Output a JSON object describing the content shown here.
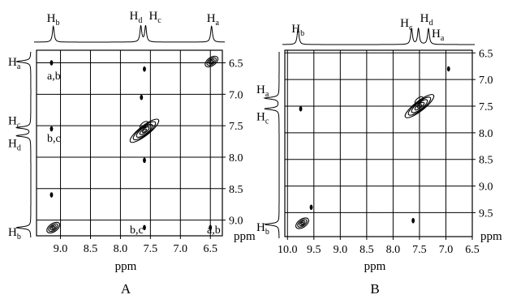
{
  "axis_unit": "ppm",
  "panels": [
    {
      "id": "A",
      "label": "A",
      "top_peak_labels": [
        {
          "letter": "b",
          "ppm": 9.12
        },
        {
          "letter": "d",
          "ppm": 7.66
        },
        {
          "letter": "c",
          "ppm": 7.58
        },
        {
          "letter": "a",
          "ppm": 6.48
        }
      ],
      "left_peak_labels": [
        {
          "letter": "a",
          "ppm": 6.48
        },
        {
          "letter": "c",
          "ppm": 7.53
        },
        {
          "letter": "d",
          "ppm": 7.66
        },
        {
          "letter": "b",
          "ppm": 9.12
        }
      ],
      "x_ticks": [
        "9.0",
        "8.5",
        "8.0",
        "7.5",
        "7.0",
        "6.5"
      ],
      "y_ticks": [
        "6.5",
        "7.0",
        "7.5",
        "8.0",
        "8.5",
        "9.0"
      ],
      "annotations": [
        "a,b",
        "b,c",
        "b,c",
        "a,b"
      ],
      "xlabel": "ppm",
      "ylabel": "ppm"
    },
    {
      "id": "B",
      "label": "B",
      "top_peak_labels": [
        {
          "letter": "b",
          "ppm": 9.8
        },
        {
          "letter": "c",
          "ppm": 7.65
        },
        {
          "letter": "d",
          "ppm": 7.52
        },
        {
          "letter": "a",
          "ppm": 7.33
        }
      ],
      "left_peak_labels": [
        {
          "letter": "a",
          "ppm": 7.35
        },
        {
          "letter": "c",
          "ppm": 7.55
        },
        {
          "letter": "b",
          "ppm": 9.72
        }
      ],
      "x_ticks": [
        "10.0",
        "9.5",
        "9.0",
        "8.5",
        "8.0",
        "7.5",
        "7.0",
        "6.5"
      ],
      "y_ticks": [
        "6.5",
        "7.0",
        "7.5",
        "8.0",
        "8.5",
        "9.0",
        "9.5"
      ],
      "annotations": [],
      "xlabel": "ppm",
      "ylabel": "ppm"
    }
  ],
  "chart_data": [
    {
      "type": "heatmap",
      "panel": "A",
      "xlim": [
        9.4,
        6.3
      ],
      "ylim": [
        6.3,
        9.25
      ],
      "x_ticks": [
        9.0,
        8.5,
        8.0,
        7.5,
        7.0,
        6.5
      ],
      "y_ticks": [
        6.5,
        7.0,
        7.5,
        8.0,
        8.5,
        9.0
      ],
      "grid": true,
      "cross_peaks": [
        {
          "x": 9.12,
          "y": 9.12,
          "size": "medium",
          "label": ""
        },
        {
          "x": 6.48,
          "y": 6.48,
          "size": "medium",
          "label": ""
        },
        {
          "x": 7.6,
          "y": 7.58,
          "size": "large",
          "label": ""
        },
        {
          "x": 9.15,
          "y": 6.5,
          "size": "small",
          "label": "a,b"
        },
        {
          "x": 9.15,
          "y": 7.55,
          "size": "small",
          "label": "b,c"
        },
        {
          "x": 9.15,
          "y": 8.6,
          "size": "small",
          "label": ""
        },
        {
          "x": 7.6,
          "y": 9.12,
          "size": "small",
          "label": "b,c"
        },
        {
          "x": 6.5,
          "y": 9.12,
          "size": "small",
          "label": "a,b"
        },
        {
          "x": 7.6,
          "y": 6.6,
          "size": "small",
          "label": ""
        },
        {
          "x": 7.65,
          "y": 7.05,
          "size": "small",
          "label": ""
        },
        {
          "x": 7.6,
          "y": 8.05,
          "size": "small",
          "label": ""
        }
      ]
    },
    {
      "type": "heatmap",
      "panel": "B",
      "xlim": [
        10.05,
        6.5
      ],
      "ylim": [
        6.45,
        9.95
      ],
      "x_ticks": [
        10.0,
        9.5,
        9.0,
        8.5,
        8.0,
        7.5,
        7.0,
        6.5
      ],
      "y_ticks": [
        6.5,
        7.0,
        7.5,
        8.0,
        8.5,
        9.0,
        9.5
      ],
      "grid": true,
      "cross_peaks": [
        {
          "x": 9.72,
          "y": 9.7,
          "size": "medium",
          "label": ""
        },
        {
          "x": 7.5,
          "y": 7.5,
          "size": "large",
          "label": ""
        },
        {
          "x": 9.75,
          "y": 7.55,
          "size": "small",
          "label": ""
        },
        {
          "x": 9.55,
          "y": 9.4,
          "size": "small",
          "label": ""
        },
        {
          "x": 6.95,
          "y": 6.8,
          "size": "small",
          "label": ""
        },
        {
          "x": 7.62,
          "y": 9.65,
          "size": "small",
          "label": ""
        }
      ]
    }
  ]
}
